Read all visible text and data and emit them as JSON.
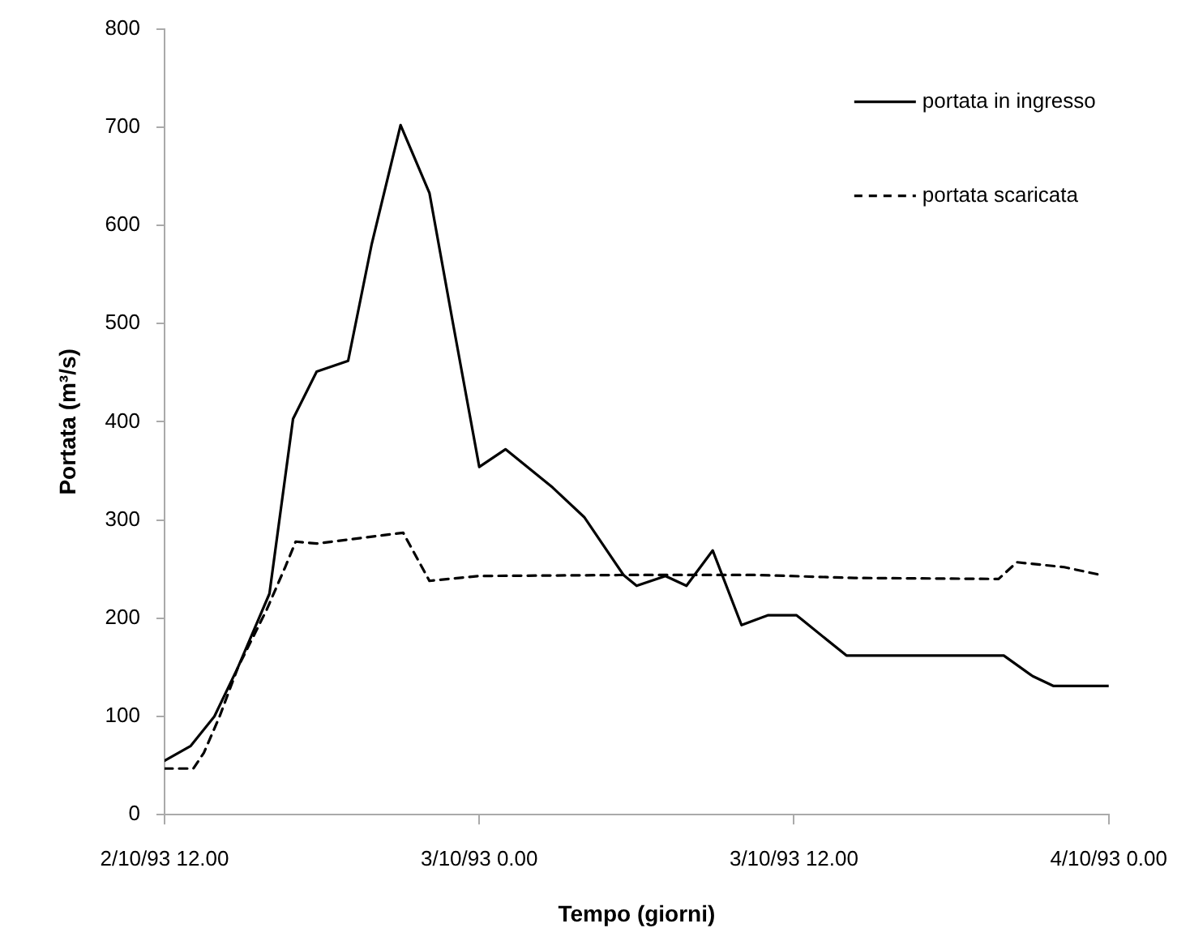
{
  "chart_data": {
    "type": "line",
    "xlabel": "Tempo (giorni)",
    "ylabel": "Portata (m³/s)",
    "xlim": [
      "1993-10-02T12:00",
      "1993-10-04T00:00"
    ],
    "xticks": [
      {
        "value": "1993-10-02T12:00",
        "label": "2/10/93 12.00"
      },
      {
        "value": "1993-10-03T00:00",
        "label": "3/10/93 0.00"
      },
      {
        "value": "1993-10-03T12:00",
        "label": "3/10/93 12.00"
      },
      {
        "value": "1993-10-04T00:00",
        "label": "4/10/93 0.00"
      }
    ],
    "ylim": [
      0,
      800
    ],
    "yticks": [
      0,
      100,
      200,
      300,
      400,
      500,
      600,
      700,
      800
    ],
    "grid": false,
    "legend": "top right",
    "marker": "none",
    "series": [
      {
        "name": "portata in ingresso",
        "color": "#000000",
        "line_style": "solid",
        "x": [
          "1993-10-02T12:00",
          "1993-10-02T13:00",
          "1993-10-02T13:54",
          "1993-10-02T14:48",
          "1993-10-02T16:00",
          "1993-10-02T16:54",
          "1993-10-02T17:48",
          "1993-10-02T19:00",
          "1993-10-02T19:54",
          "1993-10-02T21:00",
          "1993-10-02T22:06",
          "1993-10-02T23:00",
          "1993-10-03T00:00",
          "1993-10-03T01:00",
          "1993-10-03T02:48",
          "1993-10-03T04:00",
          "1993-10-03T05:30",
          "1993-10-03T06:00",
          "1993-10-03T07:06",
          "1993-10-03T07:54",
          "1993-10-03T08:54",
          "1993-10-03T10:00",
          "1993-10-03T11:00",
          "1993-10-03T12:06",
          "1993-10-03T14:00",
          "1993-10-03T20:00",
          "1993-10-03T21:06",
          "1993-10-03T21:54",
          "1993-10-04T00:00"
        ],
        "values": [
          55,
          70,
          100,
          150,
          225,
          403,
          451,
          462,
          581,
          702,
          633,
          500,
          354,
          372,
          333,
          303,
          244,
          233,
          243,
          233,
          269,
          193,
          203,
          203,
          162,
          162,
          141,
          131,
          131
        ]
      },
      {
        "name": "portata scaricata",
        "color": "#000000",
        "line_style": "dashed",
        "x": [
          "1993-10-02T12:00",
          "1993-10-02T13:06",
          "1993-10-02T13:30",
          "1993-10-02T14:06",
          "1993-10-02T14:48",
          "1993-10-02T15:54",
          "1993-10-02T16:36",
          "1993-10-02T17:00",
          "1993-10-02T17:48",
          "1993-10-02T21:06",
          "1993-10-02T22:06",
          "1993-10-03T00:00",
          "1993-10-03T05:30",
          "1993-10-03T10:36",
          "1993-10-03T14:18",
          "1993-10-03T19:48",
          "1993-10-03T20:30",
          "1993-10-03T22:18",
          "1993-10-03T23:42"
        ],
        "values": [
          47,
          47,
          63,
          100,
          150,
          209,
          252,
          278,
          276,
          287,
          238,
          243,
          244,
          244,
          241,
          240,
          257,
          252,
          244
        ]
      }
    ]
  }
}
